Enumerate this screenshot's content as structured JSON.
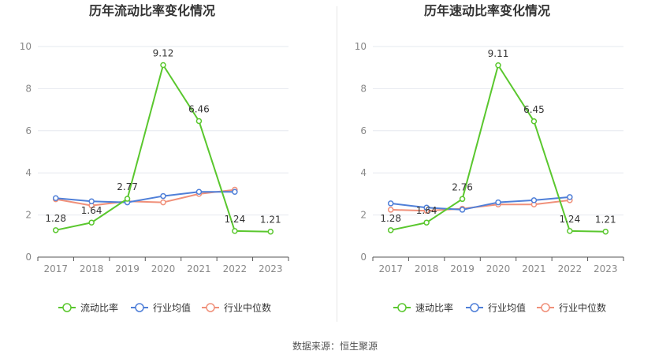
{
  "colors": {
    "series_main": "#5ac72e",
    "series_avg": "#4f7fd8",
    "series_median": "#f0907a",
    "grid": "#e6e8ef",
    "axis": "#555555",
    "tick_label": "#888888",
    "title": "#333333"
  },
  "source_text": "数据来源：恒生聚源",
  "chart_data": [
    {
      "type": "line",
      "title": "历年流动比率变化情况",
      "categories": [
        "2017",
        "2018",
        "2019",
        "2020",
        "2021",
        "2022",
        "2023"
      ],
      "ylim": [
        0,
        10
      ],
      "yticks": [
        "0",
        "2",
        "4",
        "6",
        "8",
        "10"
      ],
      "grid": true,
      "legend_position": "bottom",
      "series": [
        {
          "name": "流动比率",
          "values": [
            1.28,
            1.64,
            2.77,
            9.12,
            6.46,
            1.24,
            1.21
          ],
          "labels": [
            "1.28",
            "1.64",
            "2.77",
            "9.12",
            "6.46",
            "1.24",
            "1.21"
          ]
        },
        {
          "name": "行业均值",
          "values": [
            2.8,
            2.65,
            2.6,
            2.9,
            3.1,
            3.1,
            null
          ]
        },
        {
          "name": "行业中位数",
          "values": [
            2.75,
            2.45,
            2.65,
            2.6,
            3.0,
            3.2,
            null
          ]
        }
      ]
    },
    {
      "type": "line",
      "title": "历年速动比率变化情况",
      "categories": [
        "2017",
        "2018",
        "2019",
        "2020",
        "2021",
        "2022",
        "2023"
      ],
      "ylim": [
        0,
        10
      ],
      "yticks": [
        "0",
        "2",
        "4",
        "6",
        "8",
        "10"
      ],
      "grid": true,
      "legend_position": "bottom",
      "series": [
        {
          "name": "速动比率",
          "values": [
            1.28,
            1.64,
            2.76,
            9.11,
            6.45,
            1.24,
            1.21
          ],
          "labels": [
            "1.28",
            "1.64",
            "2.76",
            "9.11",
            "6.45",
            "1.24",
            "1.21"
          ]
        },
        {
          "name": "行业均值",
          "values": [
            2.55,
            2.35,
            2.25,
            2.6,
            2.7,
            2.85,
            null
          ]
        },
        {
          "name": "行业中位数",
          "values": [
            2.25,
            2.2,
            2.3,
            2.5,
            2.5,
            2.7,
            null
          ]
        }
      ]
    }
  ]
}
